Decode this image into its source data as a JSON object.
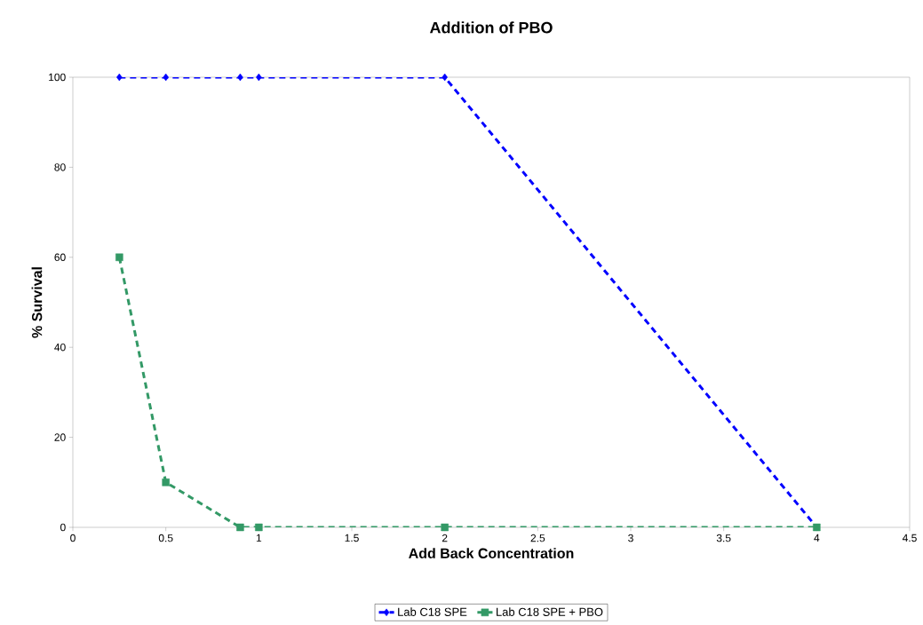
{
  "chart_data": {
    "type": "line",
    "title": "Addition of PBO",
    "xlabel": "Add Back Concentration",
    "ylabel": "% Survival",
    "x": [
      0.25,
      0.5,
      0.9,
      1,
      2,
      4
    ],
    "series": [
      {
        "name": "Lab C18 SPE",
        "color": "#0000ff",
        "marker": "diamond",
        "values": [
          100,
          100,
          100,
          100,
          100,
          0
        ]
      },
      {
        "name": "Lab C18 SPE + PBO",
        "color": "#339966",
        "marker": "square",
        "values": [
          60,
          10,
          0,
          0,
          0,
          0
        ]
      }
    ],
    "xlim": [
      0,
      4.5
    ],
    "xticks": [
      0,
      0.5,
      1,
      1.5,
      2,
      2.5,
      3,
      3.5,
      4,
      4.5
    ],
    "ylim": [
      0,
      100
    ],
    "yticks": [
      0,
      20,
      40,
      60,
      80,
      100
    ],
    "line_style": "dashed",
    "legend": "bottom",
    "grid": false
  }
}
